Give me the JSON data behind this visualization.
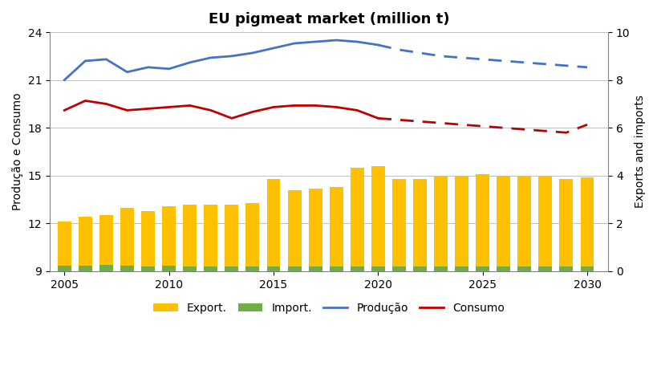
{
  "title": "EU pigmeat market (million t)",
  "ylabel_left": "Produção e Consumo",
  "ylabel_right": "Exports and imports",
  "ylim_left": [
    9,
    24
  ],
  "ylim_right": [
    0,
    10
  ],
  "yticks_left": [
    9,
    12,
    15,
    18,
    21,
    24
  ],
  "yticks_right": [
    0,
    2,
    4,
    6,
    8,
    10
  ],
  "xlim": [
    2004.3,
    2031.0
  ],
  "bar_years": [
    2005,
    2006,
    2007,
    2008,
    2009,
    2010,
    2011,
    2012,
    2013,
    2014,
    2015,
    2016,
    2017,
    2018,
    2019,
    2020,
    2021,
    2022,
    2023,
    2024,
    2025,
    2026,
    2027,
    2028,
    2029,
    2030
  ],
  "export_values": [
    12.1,
    12.4,
    12.5,
    13.0,
    12.8,
    13.1,
    13.2,
    13.2,
    13.2,
    13.3,
    14.8,
    14.1,
    14.2,
    14.3,
    15.5,
    15.6,
    14.8,
    14.8,
    15.0,
    15.0,
    15.1,
    15.0,
    15.0,
    15.0,
    14.8,
    14.9
  ],
  "import_values": [
    9.35,
    9.35,
    9.4,
    9.35,
    9.3,
    9.35,
    9.3,
    9.3,
    9.3,
    9.3,
    9.3,
    9.3,
    9.3,
    9.3,
    9.3,
    9.3,
    9.3,
    9.3,
    9.3,
    9.3,
    9.3,
    9.3,
    9.3,
    9.3,
    9.3,
    9.3
  ],
  "produção_years": [
    2005,
    2006,
    2007,
    2008,
    2009,
    2010,
    2011,
    2012,
    2013,
    2014,
    2015,
    2016,
    2017,
    2018,
    2019,
    2020
  ],
  "produção_values": [
    21.0,
    22.2,
    22.3,
    21.5,
    21.8,
    21.7,
    22.1,
    22.4,
    22.5,
    22.7,
    23.0,
    23.3,
    23.4,
    23.5,
    23.4,
    23.2
  ],
  "produção_forecast_years": [
    2020,
    2021,
    2022,
    2023,
    2024,
    2025,
    2026,
    2027,
    2028,
    2029,
    2030
  ],
  "produção_forecast_values": [
    23.2,
    22.9,
    22.7,
    22.5,
    22.4,
    22.3,
    22.2,
    22.1,
    22.0,
    21.9,
    21.8
  ],
  "consumo_years": [
    2005,
    2006,
    2007,
    2008,
    2009,
    2010,
    2011,
    2012,
    2013,
    2014,
    2015,
    2016,
    2017,
    2018,
    2019,
    2020
  ],
  "consumo_values": [
    19.1,
    19.7,
    19.5,
    19.1,
    19.2,
    19.3,
    19.4,
    19.1,
    18.6,
    19.0,
    19.3,
    19.4,
    19.4,
    19.3,
    19.1,
    18.6
  ],
  "consumo_forecast_years": [
    2020,
    2021,
    2022,
    2023,
    2024,
    2025,
    2026,
    2027,
    2028,
    2029,
    2030
  ],
  "consumo_forecast_values": [
    18.6,
    18.5,
    18.4,
    18.3,
    18.2,
    18.1,
    18.0,
    17.9,
    17.8,
    17.7,
    18.2
  ],
  "export_color": "#FFC000",
  "import_color": "#70AD47",
  "producao_color": "#4472C4",
  "consumo_color": "#C00000",
  "bar_width": 0.65,
  "legend_labels": [
    "Export.",
    "Import.",
    "Produção",
    "Consumo"
  ],
  "title_fontsize": 13,
  "axis_fontsize": 10,
  "tick_fontsize": 10,
  "legend_fontsize": 10
}
